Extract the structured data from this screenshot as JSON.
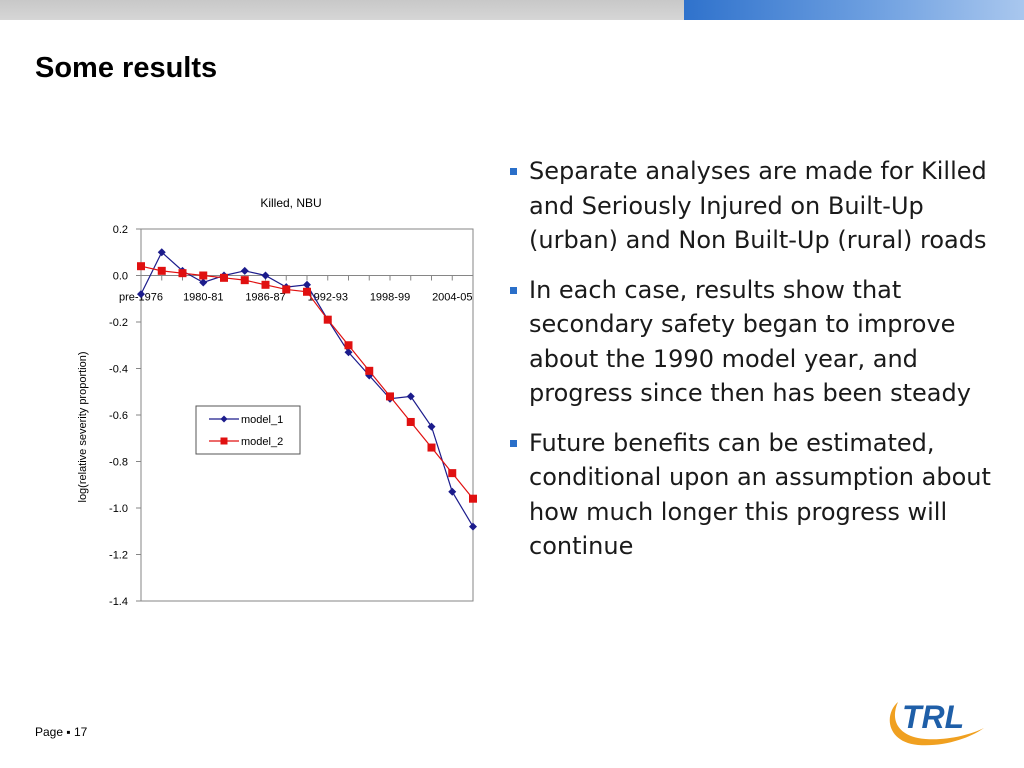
{
  "header": {
    "title": "Some results"
  },
  "chart_data": {
    "type": "line",
    "title": "Killed, NBU",
    "xlabel": "",
    "ylabel": "log(relative severity proportion)",
    "ylim": [
      -1.4,
      0.2
    ],
    "yticks": [
      "0.2",
      "0.0",
      "-0.2",
      "-0.4",
      "-0.6",
      "-0.8",
      "-1.0",
      "-1.2",
      "-1.4"
    ],
    "ytick_values": [
      0.2,
      0.0,
      -0.2,
      -0.4,
      -0.6,
      -0.8,
      -1.0,
      -1.2,
      -1.4
    ],
    "category_labels": [
      "pre-1976",
      "1980-81",
      "1986-87",
      "1992-93",
      "1998-99",
      "2004-05"
    ],
    "x": [
      0,
      1,
      2,
      3,
      4,
      5,
      6,
      7,
      8,
      9,
      10,
      11,
      12,
      13,
      14,
      15,
      16
    ],
    "grid": "none",
    "legend": "center",
    "series": [
      {
        "name": "model_1",
        "color": "#1c1c8c",
        "marker": "diamond",
        "values": [
          -0.08,
          0.1,
          0.02,
          -0.03,
          0.0,
          0.02,
          0.0,
          -0.05,
          -0.04,
          -0.19,
          -0.33,
          -0.43,
          -0.53,
          -0.52,
          -0.65,
          -0.93,
          -1.08
        ]
      },
      {
        "name": "model_2",
        "color": "#e01010",
        "marker": "square",
        "values": [
          0.04,
          0.02,
          0.01,
          0.0,
          -0.01,
          -0.02,
          -0.04,
          -0.06,
          -0.07,
          -0.19,
          -0.3,
          -0.41,
          -0.52,
          -0.63,
          -0.74,
          -0.85,
          -0.96
        ]
      }
    ]
  },
  "bullets": [
    {
      "text": "Separate analyses are made for Killed and Seriously Injured on Built-Up (urban) and Non Built-Up (rural) roads"
    },
    {
      "text": "In each case, results show that secondary safety began to improve about the 1990 model year, and progress since then has been steady"
    },
    {
      "text": "Future benefits can be estimated, conditional upon an assumption about how much longer this progress will continue"
    }
  ],
  "footer": {
    "page_label": "Page ▪ 17"
  },
  "logo": {
    "text": "TRL",
    "primary_color": "#1f5fa8",
    "accent_color": "#f0a020"
  },
  "colors": {
    "bar_blue": "#2f72cc",
    "bullet": "#2a6fc9"
  }
}
